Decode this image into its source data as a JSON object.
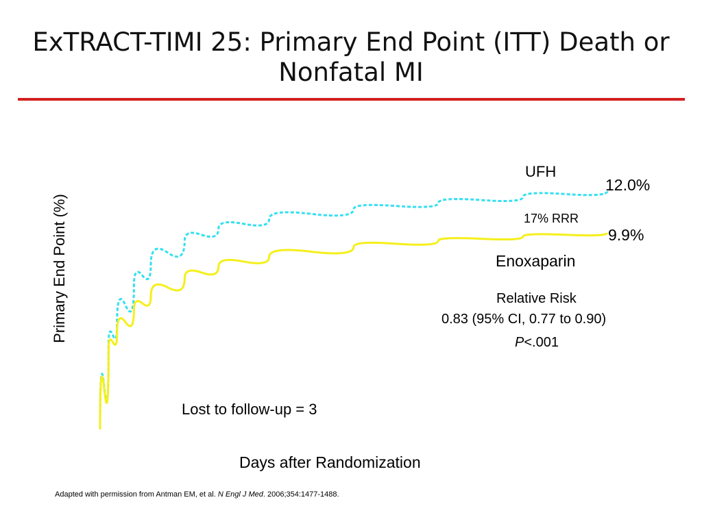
{
  "slide": {
    "title": "ExTRACT-TIMI 25: Primary End Point (ITT) Death or Nonfatal MI",
    "rule_color": "#d42020",
    "citation": {
      "before": "Adapted with permission from Antman EM, et al. ",
      "journal": "N Engl J Med",
      "after": ". 2006;354:1477-1488."
    }
  },
  "chart_data": {
    "type": "line",
    "title": "",
    "xlabel": "Days after Randomization",
    "ylabel": "Primary End Point (%)",
    "x_axis": "unlabeled",
    "y_axis": "unlabeled",
    "x": [
      0,
      0.5,
      1,
      2,
      3,
      5,
      7,
      10,
      15,
      20,
      25,
      30
    ],
    "series": [
      {
        "name": "UFH",
        "color": "#33e0f0",
        "style": "dashed",
        "values": [
          0,
          4.2,
          5.3,
          7.2,
          8.3,
          9.5,
          10.1,
          10.6,
          11.1,
          11.4,
          11.7,
          12.0
        ],
        "end_label": "12.0%"
      },
      {
        "name": "Enoxaparin",
        "color": "#f5ef1a",
        "style": "solid",
        "values": [
          0,
          4.0,
          4.8,
          6.0,
          6.7,
          7.6,
          8.2,
          8.7,
          9.2,
          9.5,
          9.7,
          9.9
        ],
        "end_label": "9.9%"
      }
    ],
    "annotations": {
      "rrr": "17% RRR",
      "relative_risk_title": "Relative Risk",
      "relative_risk_value": "0.83 (95% CI, 0.77 to 0.90)",
      "p_symbol": "P",
      "p_value": "<.001",
      "lost": "Lost to follow-up = 3"
    }
  }
}
